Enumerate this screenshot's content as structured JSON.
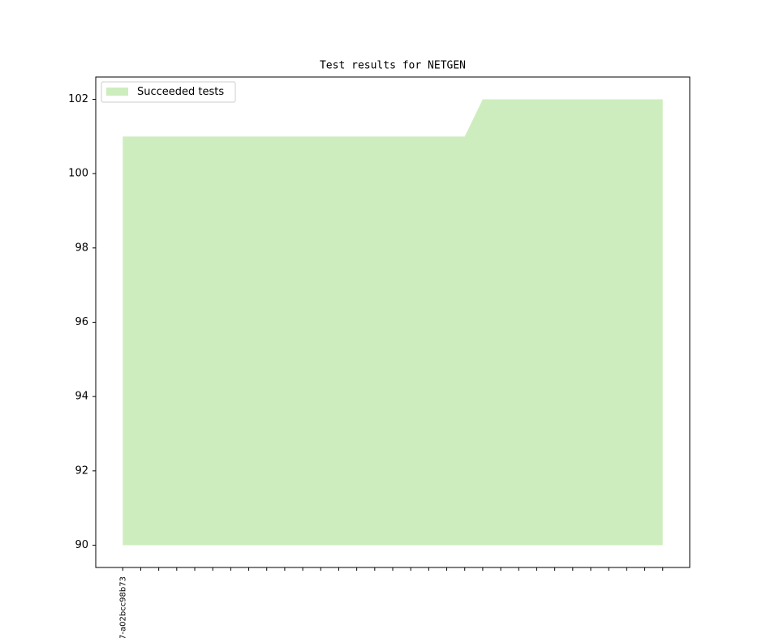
{
  "chart_data": {
    "type": "area",
    "title": "Test results for NETGEN",
    "categories": [
      "7-a02bcc98b73",
      null,
      null,
      null,
      null,
      null,
      null,
      null,
      null,
      null,
      null,
      null,
      null,
      null,
      null,
      null,
      null,
      null,
      null,
      null,
      null,
      null,
      null,
      null,
      null,
      null,
      null,
      null,
      null,
      null,
      null
    ],
    "series": [
      {
        "name": "Succeeded tests",
        "color": "#ceedbe",
        "values": [
          101,
          101,
          101,
          101,
          101,
          101,
          101,
          101,
          101,
          101,
          101,
          101,
          101,
          101,
          101,
          101,
          101,
          101,
          101,
          101,
          102,
          102,
          102,
          102,
          102,
          102,
          102,
          102,
          102,
          102,
          102
        ]
      }
    ],
    "fill_baseline": 90,
    "ylim": [
      89.4,
      102.6
    ],
    "yticks": [
      90,
      92,
      94,
      96,
      98,
      100,
      102
    ],
    "legend": "upper left",
    "grid": false
  }
}
